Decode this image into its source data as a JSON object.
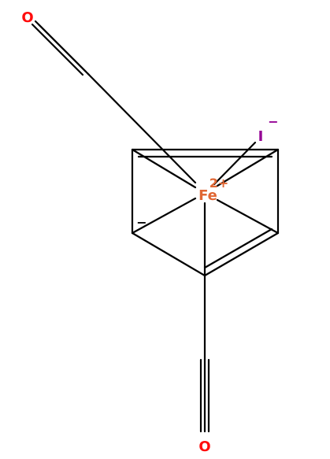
{
  "molecule": {
    "atoms": {
      "oxygen_top": {
        "symbol": "O",
        "color": "#ff0d0d"
      },
      "oxygen_bottom": {
        "symbol": "O",
        "color": "#ff0d0d"
      },
      "iron": {
        "symbol": "Fe",
        "charge": "2+",
        "color": "#e06633"
      },
      "iodine": {
        "symbol": "I",
        "charge": "−",
        "color": "#940094"
      },
      "ring_carbon": {
        "charge": "−"
      }
    },
    "bond_color": "#000000"
  }
}
